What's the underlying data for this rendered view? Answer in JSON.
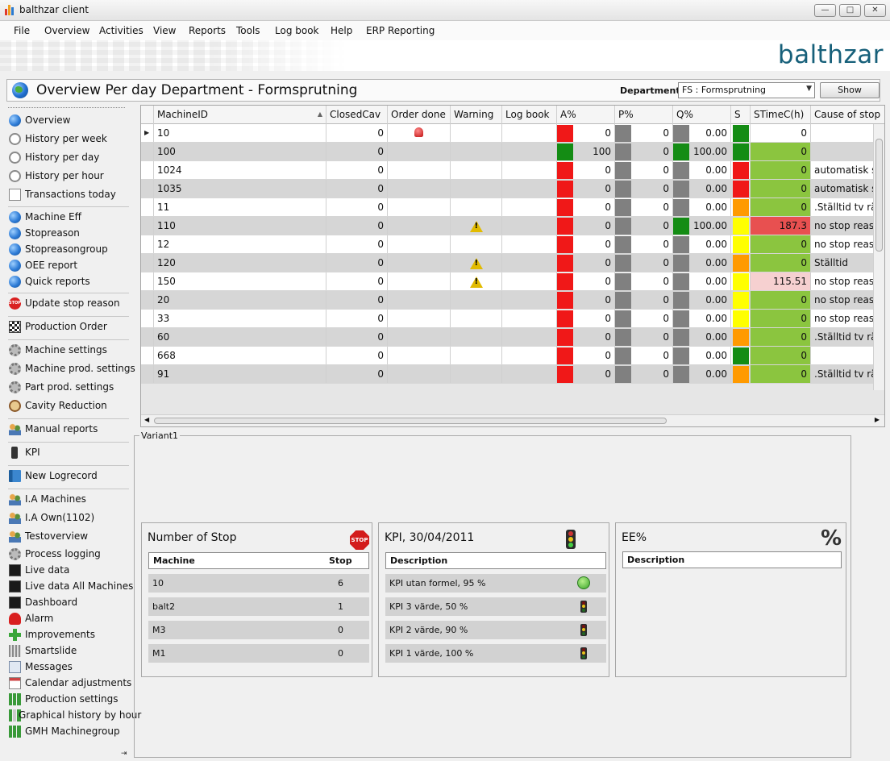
{
  "window": {
    "title": "balthzar client",
    "minimize": "—",
    "maximize": "□",
    "close": "✕"
  },
  "menu": [
    "File",
    "Overview",
    "Activities",
    "View",
    "Reports",
    "Tools",
    "Log book",
    "Help",
    "ERP Reporting"
  ],
  "brand": {
    "logo": "balthzar",
    "logo_color": "#17607a"
  },
  "page": {
    "title": "Overview Per day Department - Formsprutning",
    "department_label": "Department",
    "department_value": "FS : Formsprutning",
    "show_label": "Show"
  },
  "sidebar": {
    "items": [
      {
        "label": "Overview",
        "icon": "globe-icon"
      },
      {
        "label": "History per week",
        "icon": "clock-icon"
      },
      {
        "label": "History per day",
        "icon": "clock-icon"
      },
      {
        "label": "History per hour",
        "icon": "clock-icon"
      },
      {
        "label": "Transactions today",
        "icon": "document-icon"
      },
      {
        "label": "Machine Eff",
        "icon": "globe-icon"
      },
      {
        "label": "Stopreason",
        "icon": "globe-icon"
      },
      {
        "label": "Stopreasongroup",
        "icon": "globe-icon"
      },
      {
        "label": "OEE report",
        "icon": "globe-icon"
      },
      {
        "label": "Quick reports",
        "icon": "globe-icon"
      },
      {
        "label": "Update stop reason",
        "icon": "stop-icon"
      },
      {
        "label": "Production Order",
        "icon": "checkered-flag-icon"
      },
      {
        "label": "Machine settings",
        "icon": "gear-icon"
      },
      {
        "label": "Machine prod. settings",
        "icon": "gear-icon"
      },
      {
        "label": "Part prod. settings",
        "icon": "gear-icon"
      },
      {
        "label": "Cavity Reduction",
        "icon": "magnifier-icon"
      },
      {
        "label": "Manual reports",
        "icon": "people-icon"
      },
      {
        "label": "KPI",
        "icon": "traffic-light-icon"
      },
      {
        "label": "New Logrecord",
        "icon": "book-icon"
      },
      {
        "label": "I.A Machines",
        "icon": "people-icon"
      },
      {
        "label": "I.A Own(1102)",
        "icon": "people-icon"
      },
      {
        "label": "Testoverview",
        "icon": "people-icon"
      },
      {
        "label": "Process logging",
        "icon": "gear-icon"
      },
      {
        "label": "Live data",
        "icon": "monitor-icon"
      },
      {
        "label": "Live data All Machines",
        "icon": "monitor-icon"
      },
      {
        "label": "Dashboard",
        "icon": "monitor-icon"
      },
      {
        "label": "Alarm",
        "icon": "alarm-icon"
      },
      {
        "label": "Improvements",
        "icon": "plus-icon"
      },
      {
        "label": "Smartslide",
        "icon": "grid-icon"
      },
      {
        "label": "Messages",
        "icon": "mail-icon"
      },
      {
        "label": "Calendar adjustments",
        "icon": "calendar-icon"
      },
      {
        "label": "Production settings",
        "icon": "bar-chart-icon"
      },
      {
        "label": "Graphical history by hour",
        "icon": "bar-chart-icon"
      },
      {
        "label": "GMH Machinegroup",
        "icon": "bar-chart-icon"
      }
    ]
  },
  "grid": {
    "columns": [
      "MachineID",
      "ClosedCav",
      "Order done",
      "Warning",
      "Log book",
      "A%",
      "P%",
      "Q%",
      "S",
      "STimeC(h)",
      "Cause of stop"
    ],
    "colors": {
      "red": "#f01818",
      "green": "#148c14",
      "gray": "#808080",
      "yellow": "#ffff00",
      "orange": "#ff9a00"
    },
    "rows": [
      {
        "id": "10",
        "closed": "0",
        "order_done": "flag",
        "warning": "",
        "log": "",
        "a_color": "red",
        "a": "0",
        "p_color": "gray",
        "p": "0",
        "q_color": "gray",
        "q": "0.00",
        "s_color": "green",
        "stime": "0",
        "stime_bg": "none",
        "cause": ""
      },
      {
        "id": "100",
        "closed": "0",
        "order_done": "",
        "warning": "",
        "log": "",
        "a_color": "green",
        "a": "100",
        "p_color": "gray",
        "p": "0",
        "q_color": "green",
        "q": "100.00",
        "s_color": "green",
        "stime": "0",
        "stime_bg": "green",
        "cause": ""
      },
      {
        "id": "1024",
        "closed": "0",
        "order_done": "",
        "warning": "",
        "log": "",
        "a_color": "red",
        "a": "0",
        "p_color": "gray",
        "p": "0",
        "q_color": "gray",
        "q": "0.00",
        "s_color": "red",
        "stime": "0",
        "stime_bg": "green",
        "cause": "automatisk s"
      },
      {
        "id": "1035",
        "closed": "0",
        "order_done": "",
        "warning": "",
        "log": "",
        "a_color": "red",
        "a": "0",
        "p_color": "gray",
        "p": "0",
        "q_color": "gray",
        "q": "0.00",
        "s_color": "red",
        "stime": "0",
        "stime_bg": "green",
        "cause": "automatisk s"
      },
      {
        "id": "11",
        "closed": "0",
        "order_done": "",
        "warning": "",
        "log": "",
        "a_color": "red",
        "a": "0",
        "p_color": "gray",
        "p": "0",
        "q_color": "gray",
        "q": "0.00",
        "s_color": "orange",
        "stime": "0",
        "stime_bg": "green",
        "cause": ".Ställtid tv rä"
      },
      {
        "id": "110",
        "closed": "0",
        "order_done": "",
        "warning": "warn",
        "log": "",
        "a_color": "red",
        "a": "0",
        "p_color": "gray",
        "p": "0",
        "q_color": "green",
        "q": "100.00",
        "s_color": "yellow",
        "stime": "187.3",
        "stime_bg": "red",
        "cause": "no stop reas"
      },
      {
        "id": "12",
        "closed": "0",
        "order_done": "",
        "warning": "",
        "log": "",
        "a_color": "red",
        "a": "0",
        "p_color": "gray",
        "p": "0",
        "q_color": "gray",
        "q": "0.00",
        "s_color": "yellow",
        "stime": "0",
        "stime_bg": "green",
        "cause": "no stop reas"
      },
      {
        "id": "120",
        "closed": "0",
        "order_done": "",
        "warning": "warn",
        "log": "",
        "a_color": "red",
        "a": "0",
        "p_color": "gray",
        "p": "0",
        "q_color": "gray",
        "q": "0.00",
        "s_color": "orange",
        "stime": "0",
        "stime_bg": "green",
        "cause": "Ställtid"
      },
      {
        "id": "150",
        "closed": "0",
        "order_done": "",
        "warning": "warn",
        "log": "",
        "a_color": "red",
        "a": "0",
        "p_color": "gray",
        "p": "0",
        "q_color": "gray",
        "q": "0.00",
        "s_color": "yellow",
        "stime": "115.51",
        "stime_bg": "pink",
        "cause": "no stop reas"
      },
      {
        "id": "20",
        "closed": "0",
        "order_done": "",
        "warning": "",
        "log": "",
        "a_color": "red",
        "a": "0",
        "p_color": "gray",
        "p": "0",
        "q_color": "gray",
        "q": "0.00",
        "s_color": "yellow",
        "stime": "0",
        "stime_bg": "green",
        "cause": "no stop reas"
      },
      {
        "id": "33",
        "closed": "0",
        "order_done": "",
        "warning": "",
        "log": "",
        "a_color": "red",
        "a": "0",
        "p_color": "gray",
        "p": "0",
        "q_color": "gray",
        "q": "0.00",
        "s_color": "yellow",
        "stime": "0",
        "stime_bg": "green",
        "cause": "no stop reas"
      },
      {
        "id": "60",
        "closed": "0",
        "order_done": "",
        "warning": "",
        "log": "",
        "a_color": "red",
        "a": "0",
        "p_color": "gray",
        "p": "0",
        "q_color": "gray",
        "q": "0.00",
        "s_color": "orange",
        "stime": "0",
        "stime_bg": "green",
        "cause": ".Ställtid tv rä"
      },
      {
        "id": "668",
        "closed": "0",
        "order_done": "",
        "warning": "",
        "log": "",
        "a_color": "red",
        "a": "0",
        "p_color": "gray",
        "p": "0",
        "q_color": "gray",
        "q": "0.00",
        "s_color": "green",
        "stime": "0",
        "stime_bg": "green",
        "cause": ""
      },
      {
        "id": "91",
        "closed": "0",
        "order_done": "",
        "warning": "",
        "log": "",
        "a_color": "red",
        "a": "0",
        "p_color": "gray",
        "p": "0",
        "q_color": "gray",
        "q": "0.00",
        "s_color": "orange",
        "stime": "0",
        "stime_bg": "green",
        "cause": ".Ställtid tv rä"
      }
    ]
  },
  "variant": {
    "label": "Variant1",
    "stops": {
      "title": "Number of Stop",
      "icon_text": "STOP",
      "col_machine": "Machine",
      "col_stop": "Stop",
      "rows": [
        {
          "machine": "10",
          "stop": "6"
        },
        {
          "machine": "balt2",
          "stop": "1"
        },
        {
          "machine": "M3",
          "stop": "0"
        },
        {
          "machine": "M1",
          "stop": "0"
        }
      ]
    },
    "kpi": {
      "title": "KPI, 30/04/2011",
      "col_description": "Description",
      "rows": [
        {
          "description": "KPI utan formel, 95 %",
          "icon": "green-dot-icon"
        },
        {
          "description": "KPI 3 värde, 50 %",
          "icon": "traffic-light-icon"
        },
        {
          "description": "KPI 2 värde, 90 %",
          "icon": "traffic-light-icon"
        },
        {
          "description": "KPI 1 värde, 100 %",
          "icon": "traffic-light-icon"
        }
      ]
    },
    "ee": {
      "title": "EE%",
      "icon_text": "%",
      "col_description": "Description"
    }
  }
}
